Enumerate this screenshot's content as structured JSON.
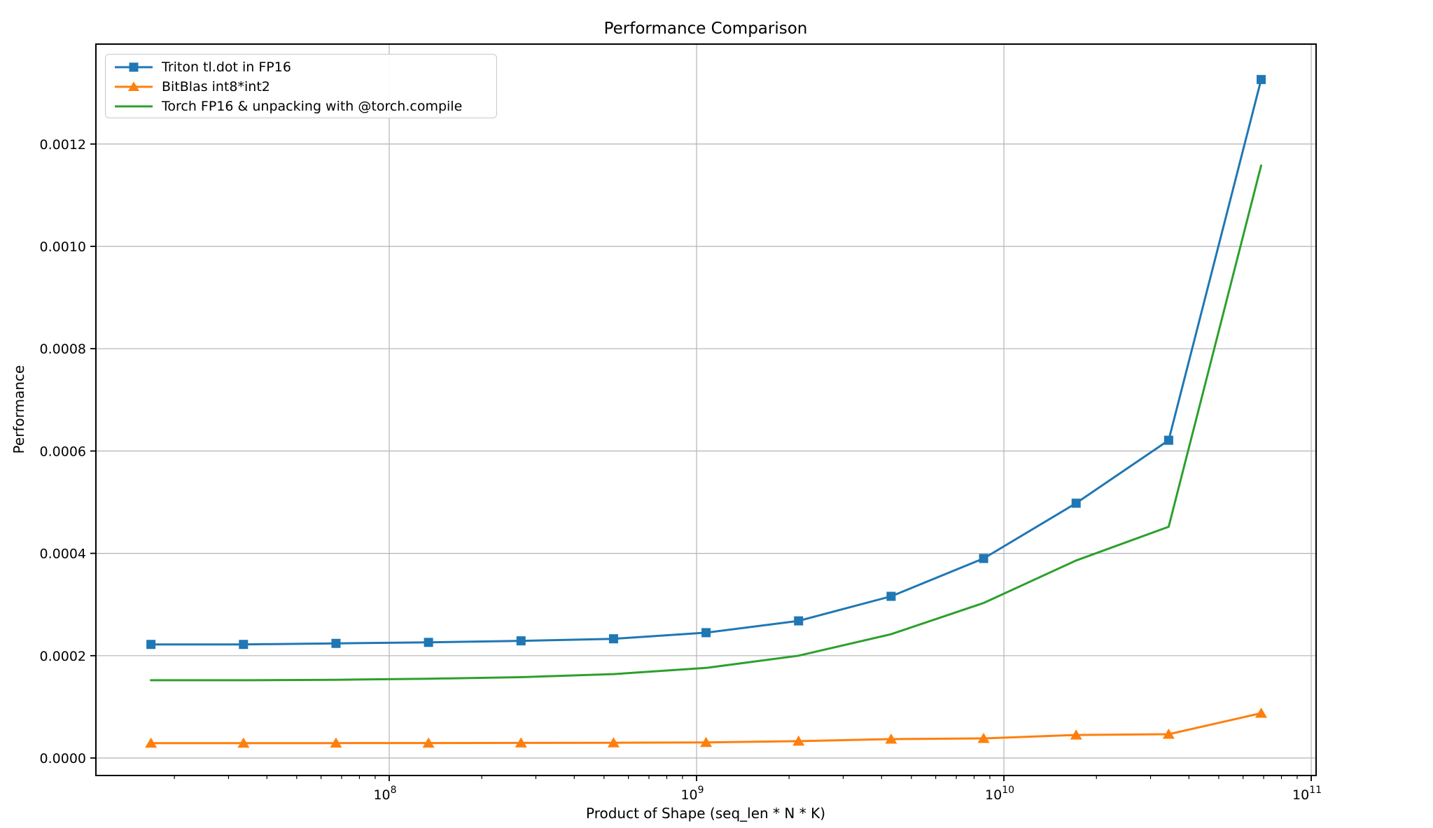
{
  "figure": {
    "title": "Performance Comparison",
    "xlabel": "Product of Shape (seq_len * N * K)",
    "ylabel": "Performance"
  },
  "chart_data": {
    "type": "line",
    "title": "Performance Comparison",
    "xlabel": "Product of Shape (seq_len * N * K)",
    "ylabel": "Performance",
    "x_scale": "log",
    "grid": true,
    "grid_color": "#b4b4b4",
    "legend_position": "upper left",
    "xlim_log10": [
      7.0456,
      11.0158
    ],
    "ylim": [
      -3.42e-05,
      0.0013953
    ],
    "x": [
      16777216,
      33554432,
      67108864,
      134217728,
      268435456,
      536870912,
      1073741824,
      2147483648,
      4294967296,
      8589934592,
      17179869184,
      34359738368,
      68719476736
    ],
    "series": [
      {
        "name": "Triton tl.dot in FP16",
        "color": "#1f77b4",
        "marker": "square",
        "values": [
          0.000222,
          0.000222,
          0.000224,
          0.000226,
          0.000229,
          0.000233,
          0.000245,
          0.000268,
          0.000316,
          0.00039,
          0.000498,
          0.000621,
          0.001326
        ]
      },
      {
        "name": "BitBlas int8*int2",
        "color": "#ff7f0e",
        "marker": "triangle",
        "values": [
          2.9e-05,
          2.9e-05,
          2.92e-05,
          2.93e-05,
          2.95e-05,
          2.98e-05,
          3.05e-05,
          3.3e-05,
          3.69e-05,
          3.83e-05,
          4.5e-05,
          4.65e-05,
          8.75e-05
        ]
      },
      {
        "name": "Torch FP16 & unpacking with @torch.compile",
        "color": "#2ca02c",
        "marker": "none",
        "values": [
          0.000152,
          0.000152,
          0.000153,
          0.000155,
          0.000158,
          0.000164,
          0.000176,
          0.0002,
          0.000242,
          0.000303,
          0.000386,
          0.000452,
          0.001158
        ]
      }
    ],
    "x_major_ticks": [
      {
        "value": 100000000,
        "base": "10",
        "exp": "8"
      },
      {
        "value": 1000000000,
        "base": "10",
        "exp": "9"
      },
      {
        "value": 10000000000,
        "base": "10",
        "exp": "10"
      },
      {
        "value": 100000000000,
        "base": "10",
        "exp": "11"
      }
    ],
    "x_minor_ticks": {
      "mantissas": [
        2,
        3,
        4,
        5,
        6,
        7,
        8,
        9
      ],
      "decades": [
        7,
        8,
        9,
        10
      ]
    },
    "y_ticks": [
      {
        "value": 0.0,
        "label": "0.0000"
      },
      {
        "value": 0.0002,
        "label": "0.0002"
      },
      {
        "value": 0.0004,
        "label": "0.0004"
      },
      {
        "value": 0.0006,
        "label": "0.0006"
      },
      {
        "value": 0.0008,
        "label": "0.0008"
      },
      {
        "value": 0.001,
        "label": "0.0010"
      },
      {
        "value": 0.0012,
        "label": "0.0012"
      }
    ]
  }
}
